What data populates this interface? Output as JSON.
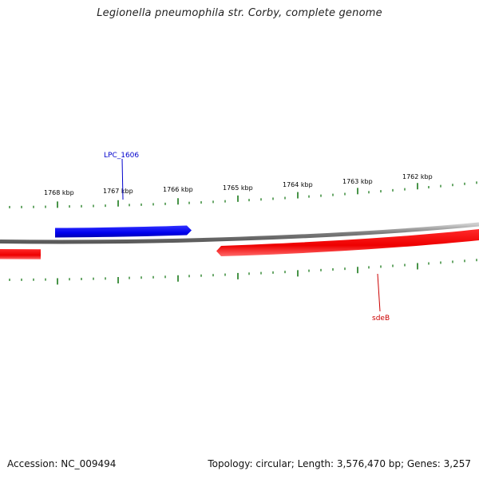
{
  "title": "Legionella pneumophila str. Corby, complete genome",
  "footer": {
    "accession": "Accession: NC_009494",
    "summary": "Topology: circular; Length: 3,576,470 bp; Genes: 3,257"
  },
  "colors": {
    "forward_strand": "#0000ee",
    "reverse_strand": "#ee0000",
    "backbone": "#808080",
    "ticks": "#1a7a1a"
  },
  "scale_ticks": [
    {
      "label": "1768 kbp",
      "kbp": 1768
    },
    {
      "label": "1767 kbp",
      "kbp": 1767
    },
    {
      "label": "1766 kbp",
      "kbp": 1766
    },
    {
      "label": "1765 kbp",
      "kbp": 1765
    },
    {
      "label": "1764 kbp",
      "kbp": 1764
    },
    {
      "label": "1763 kbp",
      "kbp": 1763
    },
    {
      "label": "1762 kbp",
      "kbp": 1762
    }
  ],
  "genes": [
    {
      "label": "LPC_1606",
      "strand": "+"
    },
    {
      "label": "sdeB",
      "strand": "-"
    },
    {
      "label": "",
      "strand": "-"
    }
  ]
}
